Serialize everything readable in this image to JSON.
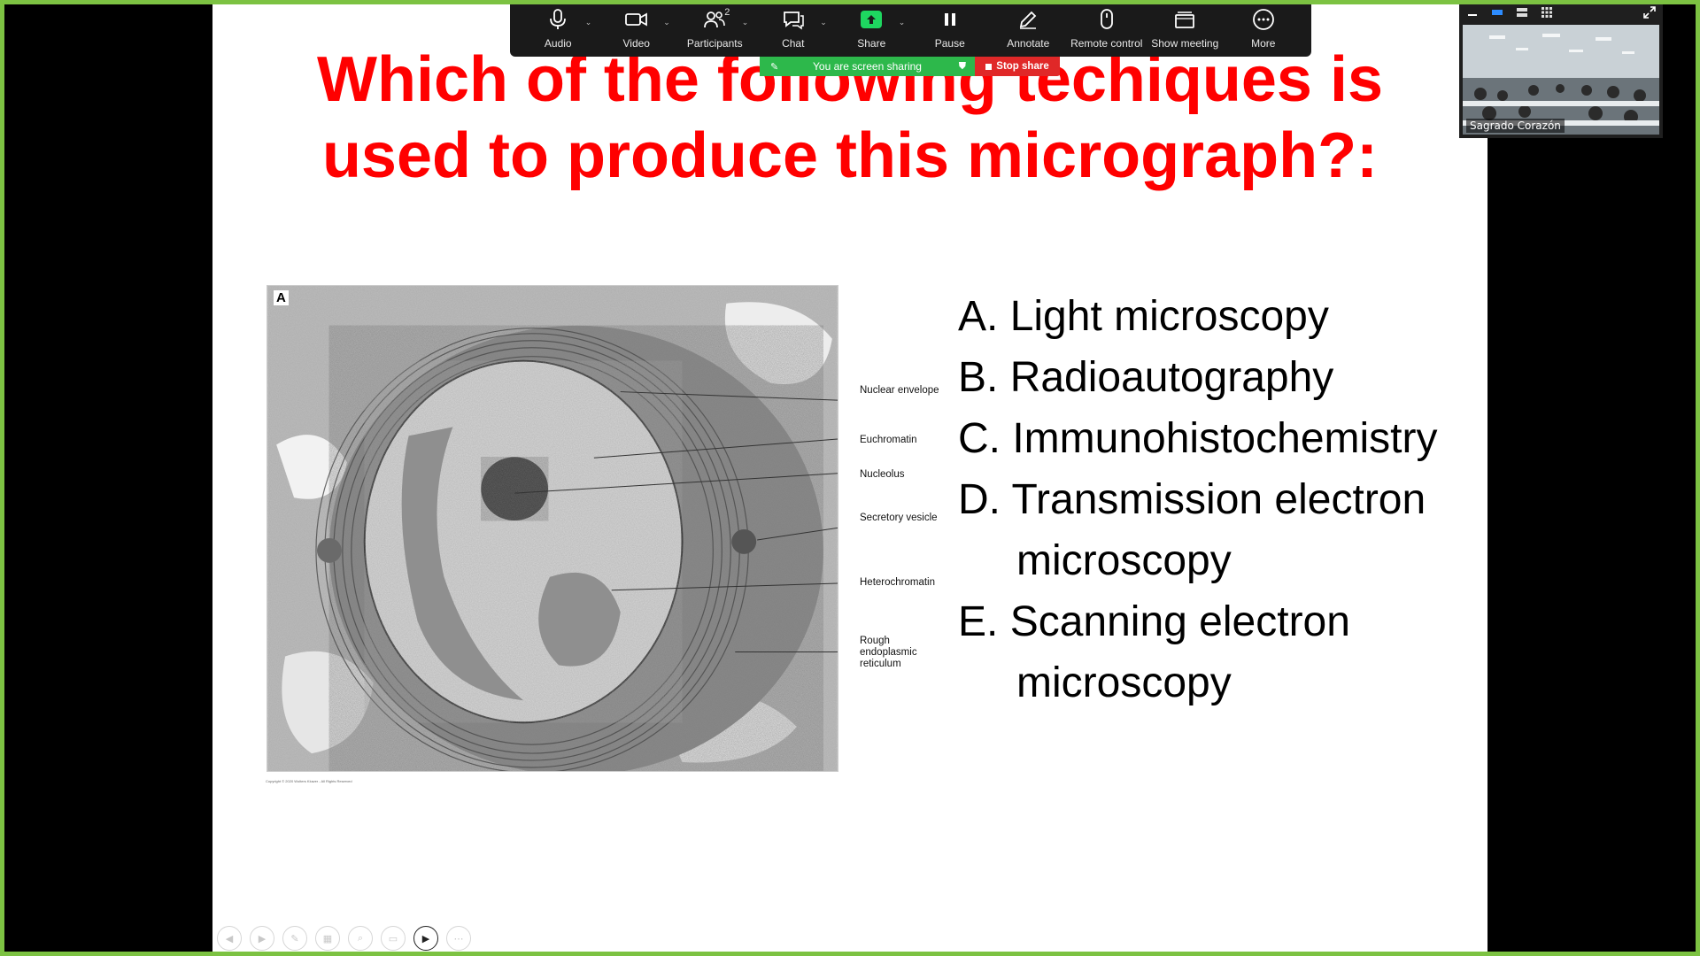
{
  "slide": {
    "title_line1": "Which of the following techiques is",
    "title_line2": "used to produce this micrograph?:",
    "panel_letter": "A",
    "copyright": "Copyright © 2020 Wolters Kluwer - All Rights Reserved",
    "labels": [
      "Nuclear envelope",
      "Euchromatin",
      "Nucleolus",
      "Secretory vesicle",
      "Heterochromatin",
      "Rough endoplasmic reticulum"
    ],
    "answers": [
      "A. Light microscopy",
      "B. Radioautography",
      "C. Immunohistochemistry",
      "D. Transmission electron",
      "microscopy",
      "E. Scanning electron",
      "microscopy"
    ],
    "colors": {
      "title": "#ff0000",
      "frame": "#7cc242"
    }
  },
  "toolbar": {
    "audio": "Audio",
    "video": "Video",
    "participants": "Participants",
    "participants_count": "2",
    "chat": "Chat",
    "share": "Share",
    "pause": "Pause",
    "annotate": "Annotate",
    "remote_control": "Remote control",
    "show_meeting": "Show meeting",
    "more": "More"
  },
  "share_status": {
    "text": "You are screen sharing",
    "stop_label": "Stop share"
  },
  "video_panel": {
    "participant_name": "Sagrado Corazón"
  }
}
